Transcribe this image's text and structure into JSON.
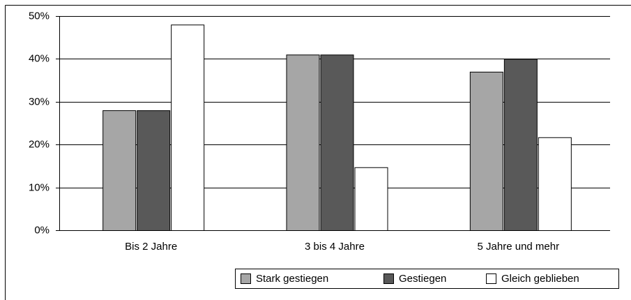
{
  "chart_data": {
    "type": "bar",
    "categories": [
      "Bis 2 Jahre",
      "3 bis 4 Jahre",
      "5 Jahre und mehr"
    ],
    "series": [
      {
        "name": "Stark gestiegen",
        "color": "#a6a6a6",
        "values": [
          28,
          41,
          37
        ]
      },
      {
        "name": "Gestiegen",
        "color": "#595959",
        "values": [
          28,
          41,
          40
        ]
      },
      {
        "name": "Gleich geblieben",
        "color": "#ffffff",
        "values": [
          48,
          14.7,
          21.7
        ]
      }
    ],
    "ylim": [
      0,
      50
    ],
    "yticks": [
      {
        "value": 0,
        "label": "0%"
      },
      {
        "value": 10,
        "label": "10%"
      },
      {
        "value": 20,
        "label": "20%"
      },
      {
        "value": 30,
        "label": "30%"
      },
      {
        "value": 40,
        "label": "40%"
      },
      {
        "value": 50,
        "label": "50%"
      }
    ],
    "grid": true,
    "legend": "bottom-right"
  }
}
